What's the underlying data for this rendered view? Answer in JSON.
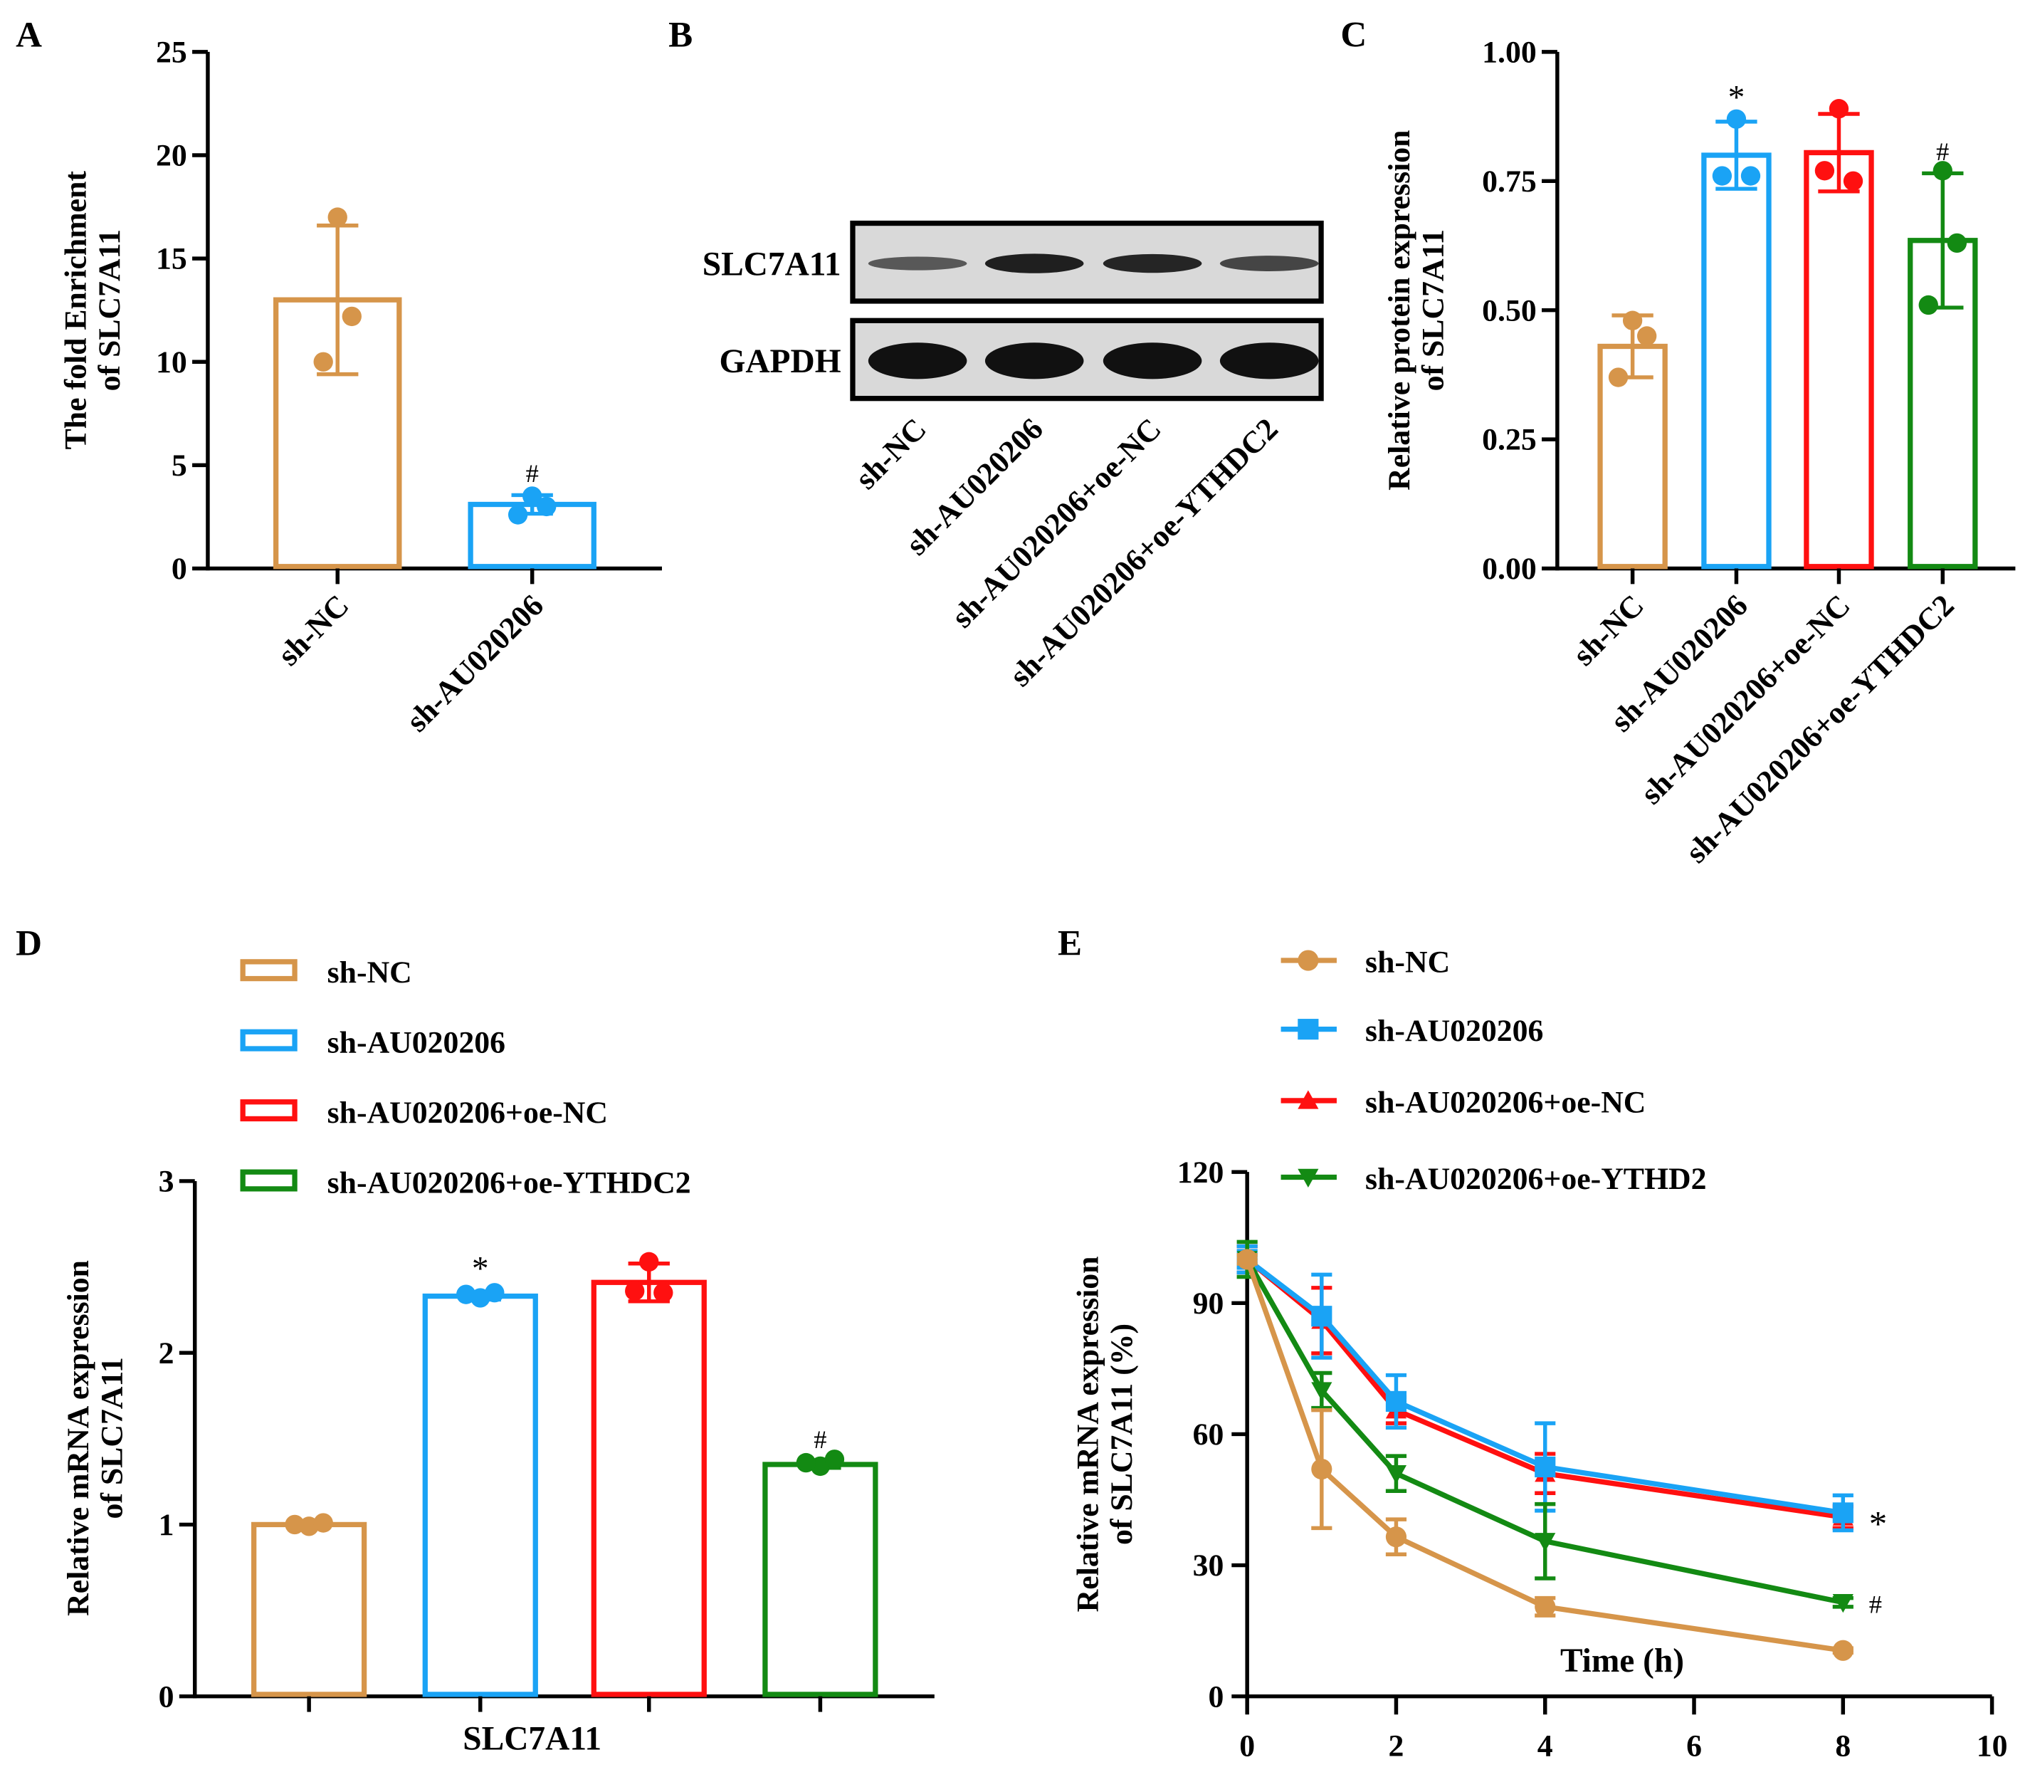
{
  "colors": {
    "shnc": "#D6954A",
    "shau": "#1AA3F5",
    "oenc": "#FF1010",
    "ythdc2": "#138A13",
    "axis": "#000000"
  },
  "chart_data": [
    {
      "panel": "A",
      "type": "bar",
      "ylabel_line1": "The fold Enrichment",
      "ylabel_line2": "of SLC7A11",
      "ylim": [
        0,
        25
      ],
      "yticks": [
        "0",
        "5",
        "10",
        "15",
        "20",
        "25"
      ],
      "categories": [
        "sh-NC",
        "sh-AU020206"
      ],
      "values": [
        13.0,
        3.1
      ],
      "sd": [
        3.6,
        0.45
      ],
      "points": [
        [
          17.0,
          12.2,
          10.0
        ],
        [
          3.5,
          3.0,
          2.6
        ]
      ],
      "annotations": [
        "",
        "#"
      ],
      "color_keys": [
        "shnc",
        "shau"
      ]
    },
    {
      "panel": "C",
      "type": "bar",
      "ylabel_line1": "Relative protein expression",
      "ylabel_line2": "of SLC7A11",
      "ylim": [
        0,
        1
      ],
      "yticks": [
        "0.00",
        "0.25",
        "0.50",
        "0.75",
        "1.00"
      ],
      "categories": [
        "sh-NC",
        "sh-AU020206",
        "sh-AU020206+oe-NC",
        "sh-AU020206+oe-YTHDC2"
      ],
      "values": [
        0.43,
        0.8,
        0.805,
        0.635
      ],
      "sd": [
        0.06,
        0.065,
        0.075,
        0.13
      ],
      "points": [
        [
          0.48,
          0.45,
          0.37
        ],
        [
          0.87,
          0.76,
          0.76
        ],
        [
          0.89,
          0.75,
          0.77
        ],
        [
          0.77,
          0.63,
          0.51
        ]
      ],
      "annotations": [
        "",
        "*",
        "",
        "#"
      ],
      "color_keys": [
        "shnc",
        "shau",
        "oenc",
        "ythdc2"
      ]
    },
    {
      "panel": "D",
      "type": "bar",
      "ylabel_line1": "Relative mRNA expression",
      "ylabel_line2": "of SLC7A11",
      "xlabel": "SLC7A11",
      "ylim": [
        0,
        3
      ],
      "yticks": [
        "0",
        "1",
        "2",
        "3"
      ],
      "categories": [
        "sh-NC",
        "sh-AU020206",
        "sh-AU020206+oe-NC",
        "sh-AU020206+oe-YTHDC2"
      ],
      "values": [
        1.0,
        2.33,
        2.41,
        1.35
      ],
      "sd": [
        0.01,
        0.02,
        0.11,
        0.02
      ],
      "points": [
        [
          0.99,
          1.01,
          1.0
        ],
        [
          2.32,
          2.35,
          2.34
        ],
        [
          2.53,
          2.35,
          2.36
        ],
        [
          1.34,
          1.38,
          1.36
        ]
      ],
      "annotations": [
        "",
        "*",
        "",
        "#"
      ],
      "legend": [
        "sh-NC",
        "sh-AU020206",
        "sh-AU020206+oe-NC",
        "sh-AU020206+oe-YTHDC2"
      ],
      "legend_placement": "top",
      "color_keys": [
        "shnc",
        "shau",
        "oenc",
        "ythdc2"
      ]
    },
    {
      "panel": "E",
      "type": "line",
      "ylabel_line1": "Relative mRNA expression",
      "ylabel_line2": "of SLC7A11 (%)",
      "xlabel": "Time (h)",
      "xlim": [
        0,
        10
      ],
      "xticks": [
        "0",
        "2",
        "4",
        "6",
        "8",
        "10"
      ],
      "ylim": [
        0,
        120
      ],
      "yticks": [
        "0",
        "30",
        "60",
        "90",
        "120"
      ],
      "x": [
        0,
        1,
        2,
        4,
        8
      ],
      "series": [
        {
          "name": "sh-NC",
          "marker": "circle",
          "color_key": "shnc",
          "values": [
            100,
            52,
            36.5,
            20.5,
            10.5
          ],
          "err": [
            1,
            13.5,
            4,
            2,
            0.5
          ],
          "annotation": ""
        },
        {
          "name": "sh-AU020206",
          "marker": "square",
          "color_key": "shau",
          "values": [
            100,
            87,
            67.5,
            52.5,
            42
          ],
          "err": [
            3,
            9.5,
            6,
            10,
            4
          ],
          "annotation": "*"
        },
        {
          "name": "sh-AU020206+oe-NC",
          "marker": "triangle-up",
          "color_key": "oenc",
          "values": [
            100,
            86,
            65.5,
            51,
            41
          ],
          "err": [
            3,
            7.5,
            3,
            4.5,
            2.5
          ],
          "annotation": ""
        },
        {
          "name": "sh-AU020206+oe-YTHD2",
          "marker": "triangle-down",
          "color_key": "ythdc2",
          "values": [
            100,
            70,
            51,
            35.5,
            21.5
          ],
          "err": [
            4,
            4,
            4,
            8.5,
            1
          ],
          "annotation": "#"
        }
      ],
      "legend_placement": "top"
    }
  ],
  "blot": {
    "panel": "B",
    "rows": [
      "SLC7A11",
      "GAPDH"
    ],
    "lanes": [
      "sh-NC",
      "sh-AU020206",
      "sh-AU020206+oe-NC",
      "sh-AU020206+oe-YTHDC2"
    ],
    "intensity": [
      [
        0.45,
        0.9,
        0.85,
        0.6
      ],
      [
        1,
        1,
        1,
        1
      ]
    ]
  },
  "panel_letters": [
    "A",
    "B",
    "C",
    "D",
    "E"
  ]
}
